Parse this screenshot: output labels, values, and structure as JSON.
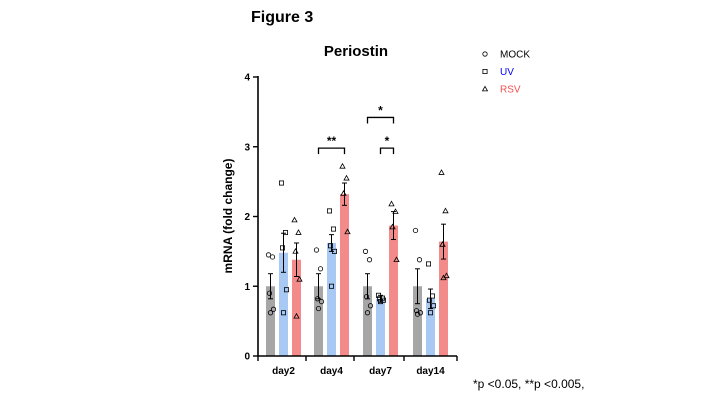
{
  "figure_label": "Figure 3",
  "footnote": "*p <0.05, **p <0.005,",
  "chart_data": {
    "type": "bar",
    "title": "Periostin",
    "xlabel": "",
    "ylabel": "mRNA (fold change)",
    "ylim": [
      0,
      4
    ],
    "yticks": [
      "0",
      "1",
      "2",
      "3",
      "4"
    ],
    "categories": [
      "day2",
      "day4",
      "day7",
      "day14"
    ],
    "legend_position": "top-right",
    "series": [
      {
        "name": "MOCK",
        "marker": "circle",
        "color": "#a6a6a6",
        "legend_text_color": "#000000",
        "values": [
          1.0,
          1.0,
          1.0,
          1.0
        ],
        "errors": [
          0.18,
          0.18,
          0.18,
          0.25
        ],
        "points": [
          [
            1.45,
            1.42,
            0.9,
            0.67,
            0.62
          ],
          [
            1.52,
            1.25,
            0.82,
            0.78,
            0.68
          ],
          [
            1.5,
            1.38,
            0.85,
            0.72,
            0.62
          ],
          [
            1.8,
            1.38,
            0.65,
            0.62,
            0.6
          ]
        ]
      },
      {
        "name": "UV",
        "marker": "square",
        "color": "#a9c9f5",
        "legend_text_color": "#0000ff",
        "values": [
          1.48,
          1.62,
          0.82,
          0.82
        ],
        "errors": [
          0.28,
          0.12,
          0.05,
          0.14
        ],
        "points": [
          [
            2.48,
            1.77,
            1.55,
            0.95,
            0.62
          ],
          [
            2.08,
            1.82,
            1.58,
            1.5,
            1.0
          ],
          [
            0.87,
            0.83,
            0.82,
            0.8,
            0.78
          ],
          [
            1.32,
            0.86,
            0.8,
            0.72,
            0.62
          ]
        ]
      },
      {
        "name": "RSV",
        "marker": "triangle",
        "color": "#f48b8b",
        "legend_text_color": "#f05050",
        "values": [
          1.38,
          2.32,
          1.87,
          1.64
        ],
        "errors": [
          0.24,
          0.16,
          0.2,
          0.25
        ],
        "points": [
          [
            1.95,
            1.77,
            1.5,
            1.1,
            0.57
          ],
          [
            2.72,
            2.55,
            2.33,
            1.78
          ],
          [
            2.18,
            2.07,
            1.85,
            1.38
          ],
          [
            2.63,
            2.08,
            1.6,
            1.15,
            1.12
          ]
        ]
      }
    ],
    "significance": [
      {
        "group": 1,
        "from": 0,
        "to": 2,
        "y": 2.98,
        "label": "**"
      },
      {
        "group": 2,
        "from": 0,
        "to": 2,
        "y": 3.42,
        "label": "*"
      },
      {
        "group": 2,
        "from": 1,
        "to": 2,
        "y": 2.98,
        "label": "*"
      }
    ]
  }
}
